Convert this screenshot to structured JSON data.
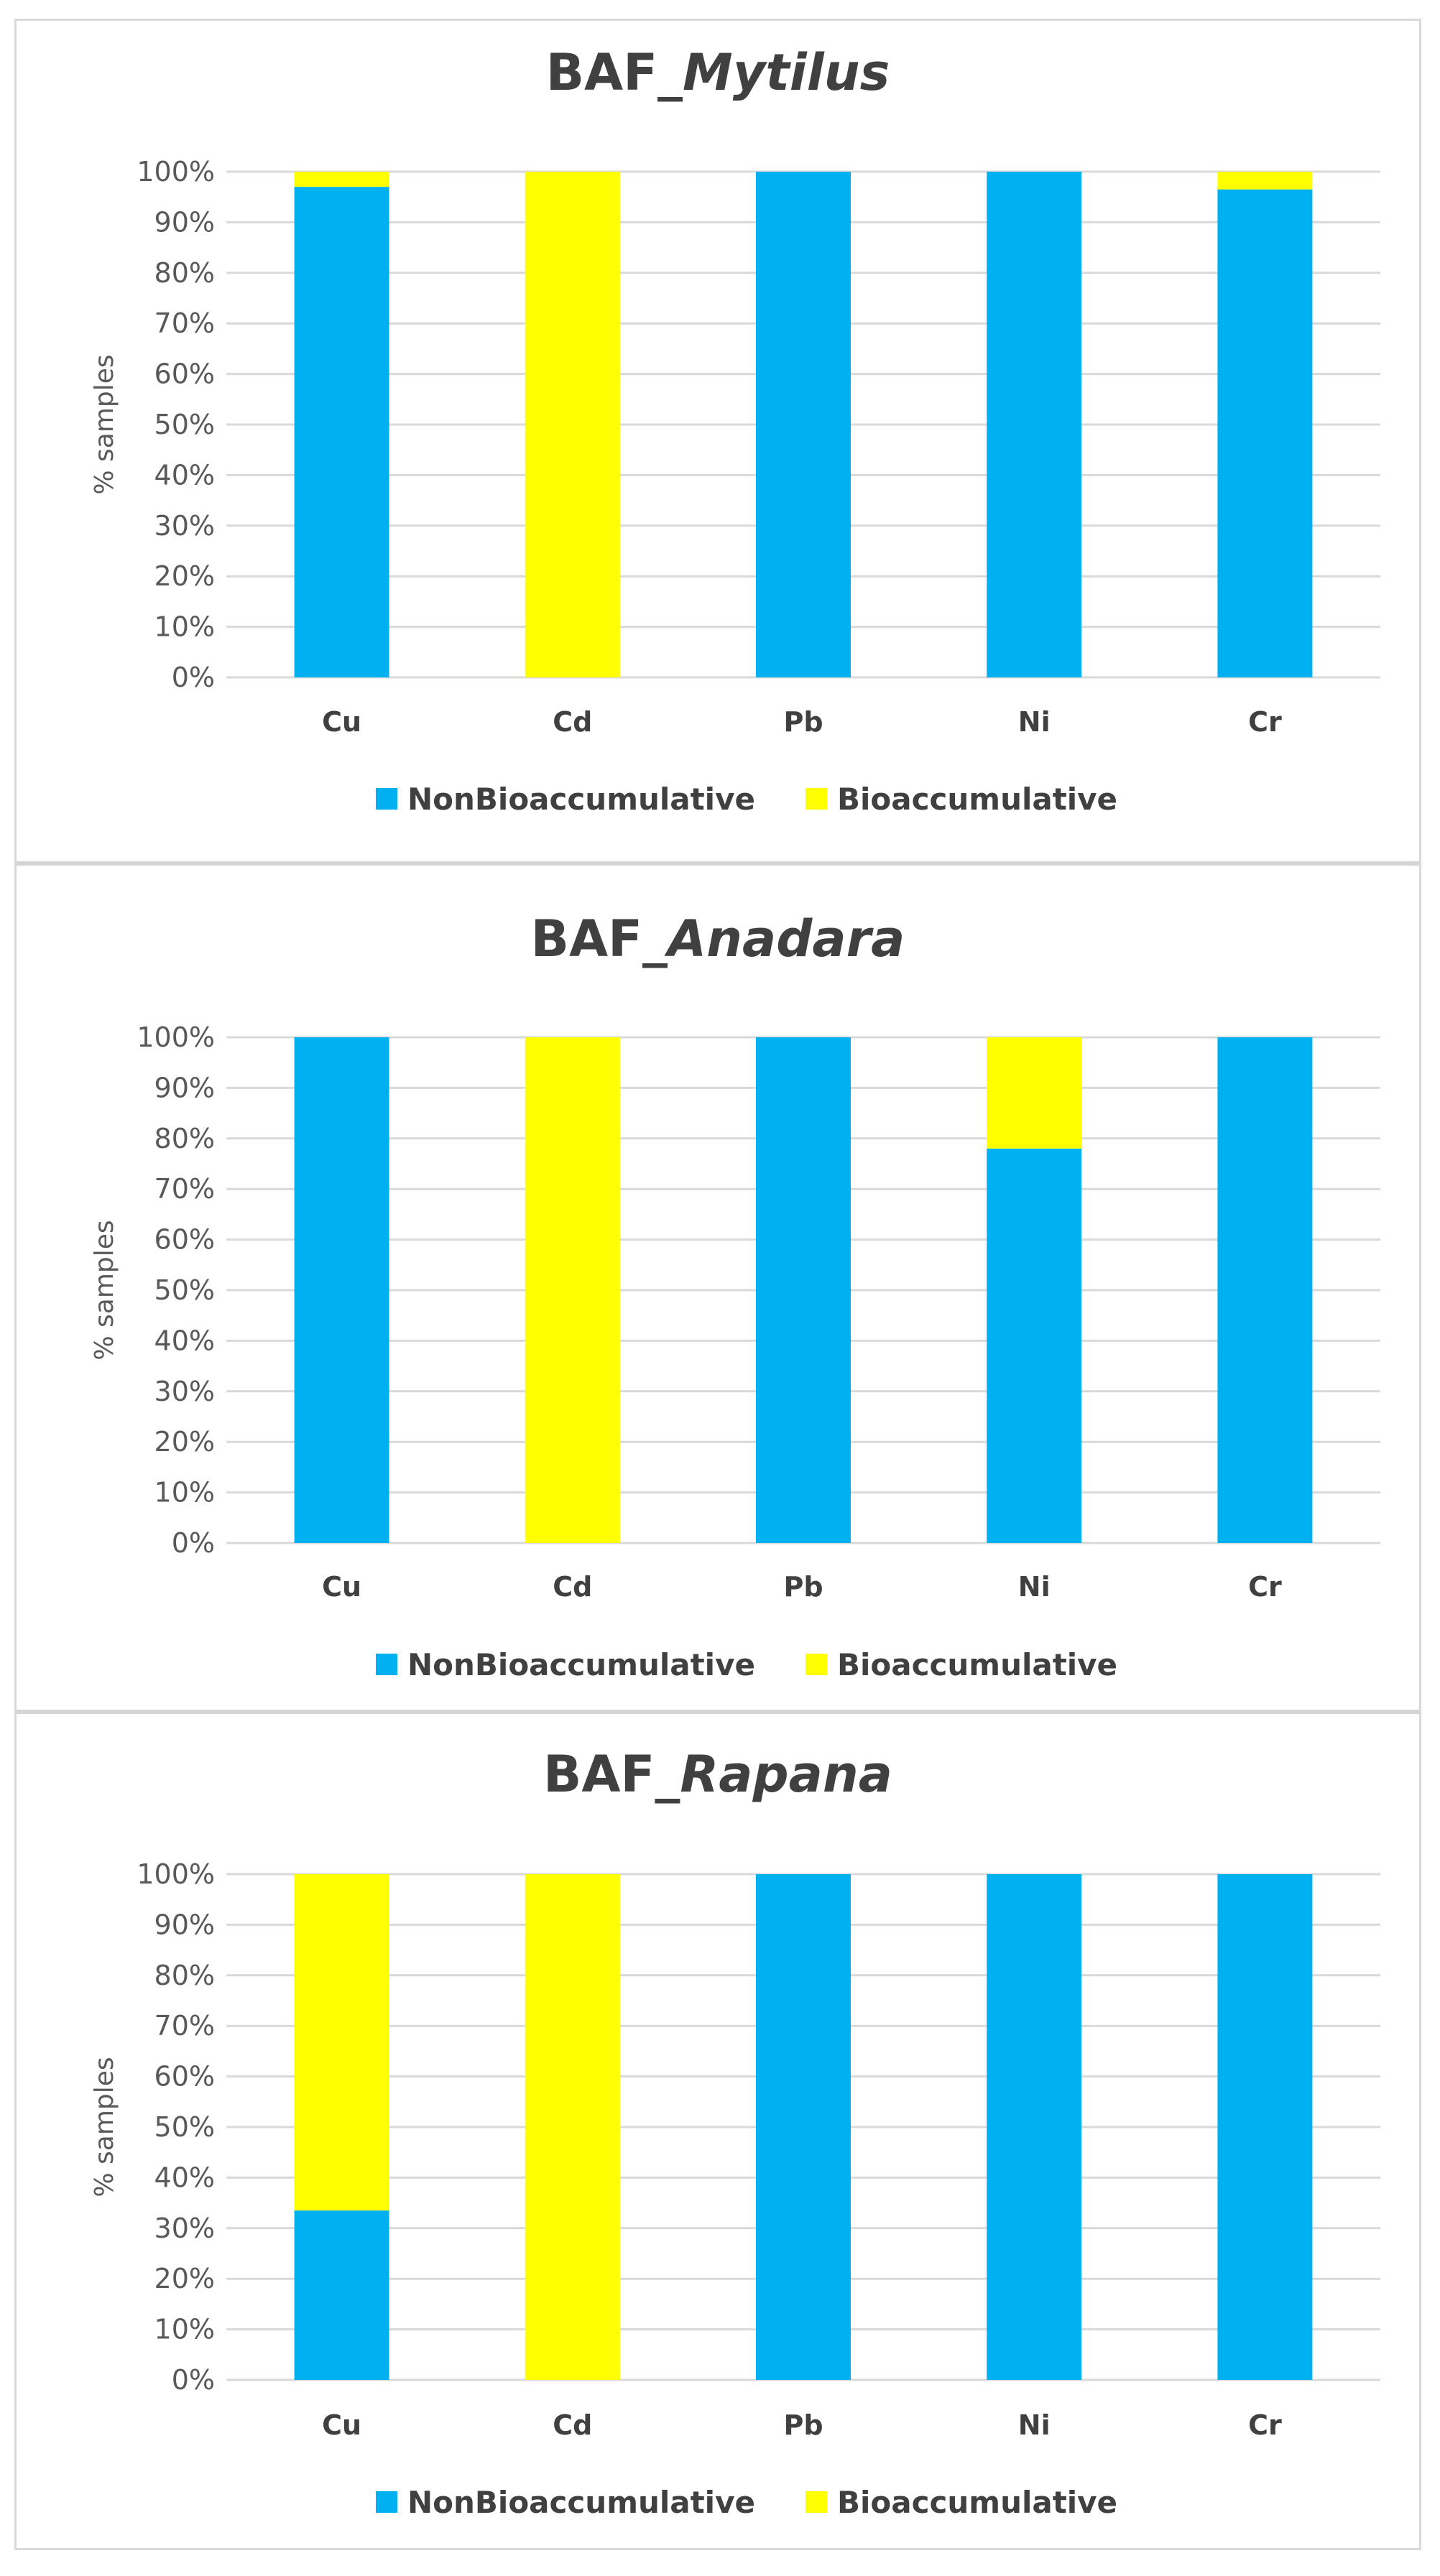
{
  "chart_data": [
    {
      "type": "bar",
      "stacked": true,
      "percent": true,
      "title_prefix": "BAF_",
      "title_species": "Mytilus",
      "ylabel": "% samples",
      "xlabel": "",
      "ylim": [
        0,
        100
      ],
      "yticks": [
        "0%",
        "10%",
        "20%",
        "30%",
        "40%",
        "50%",
        "60%",
        "70%",
        "80%",
        "90%",
        "100%"
      ],
      "grid": true,
      "legend_position": "bottom",
      "categories": [
        "Cu",
        "Cd",
        "Pb",
        "Ni",
        "Cr"
      ],
      "series": [
        {
          "name": "NonBioaccumulative",
          "color": "#00B0F0",
          "values": [
            97,
            0,
            100,
            100,
            96.5
          ]
        },
        {
          "name": "Bioaccumulative",
          "color": "#FFFF00",
          "values": [
            3,
            100,
            0,
            0,
            3.5
          ]
        }
      ]
    },
    {
      "type": "bar",
      "stacked": true,
      "percent": true,
      "title_prefix": "BAF_",
      "title_species": "Anadara",
      "ylabel": "% samples",
      "xlabel": "",
      "ylim": [
        0,
        100
      ],
      "yticks": [
        "0%",
        "10%",
        "20%",
        "30%",
        "40%",
        "50%",
        "60%",
        "70%",
        "80%",
        "90%",
        "100%"
      ],
      "grid": true,
      "legend_position": "bottom",
      "categories": [
        "Cu",
        "Cd",
        "Pb",
        "Ni",
        "Cr"
      ],
      "series": [
        {
          "name": "NonBioaccumulative",
          "color": "#00B0F0",
          "values": [
            100,
            0,
            100,
            78,
            100
          ]
        },
        {
          "name": "Bioaccumulative",
          "color": "#FFFF00",
          "values": [
            0,
            100,
            0,
            22,
            0
          ]
        }
      ]
    },
    {
      "type": "bar",
      "stacked": true,
      "percent": true,
      "title_prefix": "BAF_",
      "title_species": "Rapana",
      "ylabel": "% samples",
      "xlabel": "",
      "ylim": [
        0,
        100
      ],
      "yticks": [
        "0%",
        "10%",
        "20%",
        "30%",
        "40%",
        "50%",
        "60%",
        "70%",
        "80%",
        "90%",
        "100%"
      ],
      "grid": true,
      "legend_position": "bottom",
      "categories": [
        "Cu",
        "Cd",
        "Pb",
        "Ni",
        "Cr"
      ],
      "series": [
        {
          "name": "NonBioaccumulative",
          "color": "#00B0F0",
          "values": [
            33.5,
            0,
            100,
            100,
            100
          ]
        },
        {
          "name": "Bioaccumulative",
          "color": "#FFFF00",
          "values": [
            66.5,
            100,
            0,
            0,
            0
          ]
        }
      ]
    }
  ],
  "colors": {
    "grid": "#d9d9d9",
    "axis_text": "#595959",
    "title_text": "#404040"
  }
}
